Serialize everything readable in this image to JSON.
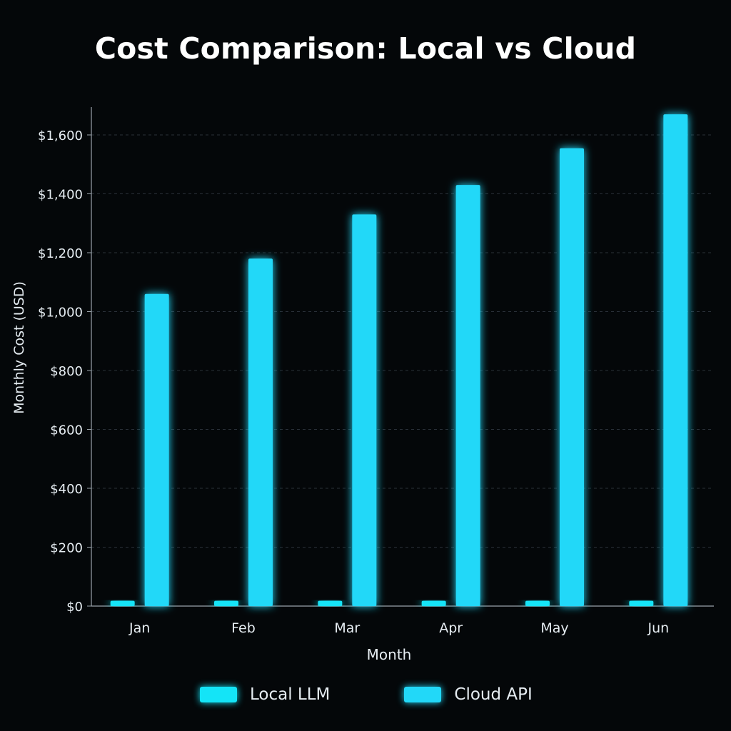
{
  "colors": {
    "background": "#040709",
    "local": "#14e4f7",
    "cloud": "#22d8f8",
    "grid": "#2a3038",
    "axis": "#9aa3ab",
    "text": "#e6edf2"
  },
  "chart_data": {
    "type": "bar",
    "title": "Cost Comparison: Local vs Cloud",
    "xlabel": "Month",
    "ylabel": "Monthly Cost (USD)",
    "categories": [
      "Jan",
      "Feb",
      "Mar",
      "Apr",
      "May",
      "Jun"
    ],
    "series": [
      {
        "name": "Local LLM",
        "values": [
          18,
          18,
          18,
          18,
          18,
          18
        ]
      },
      {
        "name": "Cloud API",
        "values": [
          1060,
          1180,
          1330,
          1430,
          1555,
          1670
        ]
      }
    ],
    "ylim": [
      0,
      1700
    ],
    "yticks": [
      0,
      200,
      400,
      600,
      800,
      1000,
      1200,
      1400,
      1600
    ],
    "ytick_labels": [
      "$0",
      "$200",
      "$400",
      "$600",
      "$800",
      "$1,000",
      "$1,200",
      "$1,400",
      "$1,600"
    ],
    "grid": true,
    "legend_position": "bottom-center"
  }
}
